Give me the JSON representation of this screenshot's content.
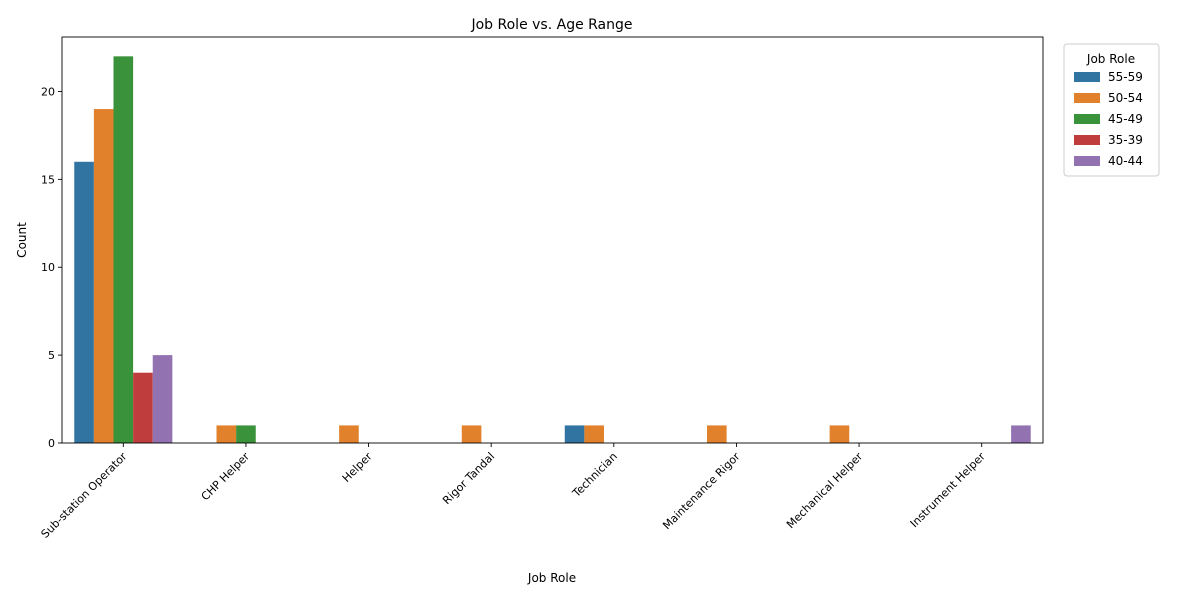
{
  "chart_data": {
    "type": "bar",
    "title": "Job Role vs. Age Range",
    "xlabel": "Job Role",
    "ylabel": "Count",
    "ylim": [
      0,
      23.1
    ],
    "yticks": [
      0,
      5,
      10,
      15,
      20
    ],
    "grid": false,
    "legend": {
      "title": "Job Role",
      "placement": "outside-top-right"
    },
    "categories": [
      "Sub-station Operator",
      "CHP Helper",
      "Helper",
      "Rigor Tandal",
      "Technician",
      "Maintenance Rigor",
      "Mechanical Helper",
      "Instrument Helper"
    ],
    "series": [
      {
        "name": "55-59",
        "color": "#3274a1",
        "values": [
          16,
          0,
          0,
          0,
          1,
          0,
          0,
          0
        ]
      },
      {
        "name": "50-54",
        "color": "#e1812c",
        "values": [
          19,
          1,
          1,
          1,
          1,
          1,
          1,
          0
        ]
      },
      {
        "name": "45-49",
        "color": "#3a923a",
        "values": [
          22,
          1,
          0,
          0,
          0,
          0,
          0,
          0
        ]
      },
      {
        "name": "35-39",
        "color": "#c03d3e",
        "values": [
          4,
          0,
          0,
          0,
          0,
          0,
          0,
          0
        ]
      },
      {
        "name": "40-44",
        "color": "#9372b2",
        "values": [
          5,
          0,
          0,
          0,
          0,
          0,
          0,
          1
        ]
      }
    ]
  }
}
